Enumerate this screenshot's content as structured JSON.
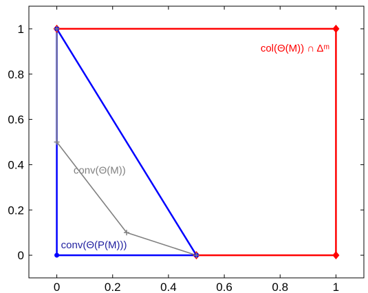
{
  "chart_data": {
    "type": "line",
    "xlim": [
      -0.1,
      1.1
    ],
    "ylim": [
      -0.1,
      1.1
    ],
    "xticks": [
      0,
      0.2,
      0.4,
      0.6,
      0.8,
      1
    ],
    "yticks": [
      0,
      0.2,
      0.4,
      0.6,
      0.8,
      1
    ],
    "xtick_labels": [
      "0",
      "0.2",
      "0.4",
      "0.6",
      "0.8",
      "1"
    ],
    "ytick_labels": [
      "0",
      "0.2",
      "0.4",
      "0.6",
      "0.8",
      "1"
    ],
    "grid": false,
    "series": [
      {
        "name": "col(Θ(M)) ∩ Δᵐ",
        "color": "#ff0000",
        "marker": "diamond",
        "x": [
          0,
          1,
          1,
          0.5
        ],
        "y": [
          1,
          1,
          0,
          0
        ]
      },
      {
        "name": "conv(Θ(P(M)))",
        "color": "#0000ff",
        "marker": "circle",
        "x": [
          0,
          0,
          0.5,
          0
        ],
        "y": [
          1,
          0,
          0,
          1
        ]
      },
      {
        "name": "conv(Θ(M))",
        "color": "#808080",
        "marker": "plus",
        "x": [
          0,
          0,
          0.25,
          0.5
        ],
        "y": [
          1,
          0.5,
          0.1,
          0
        ]
      }
    ],
    "annotations": [
      {
        "text": "col(Θ(M)) ∩ Δᵐ",
        "x": 0.73,
        "y": 0.9,
        "color": "#ff0000"
      },
      {
        "text": "conv(Θ(M))",
        "x": 0.06,
        "y": 0.36,
        "color": "#808080"
      },
      {
        "text": "conv(Θ(P(M)))",
        "x": 0.015,
        "y": 0.03,
        "color": "#1f1f9f"
      }
    ]
  }
}
